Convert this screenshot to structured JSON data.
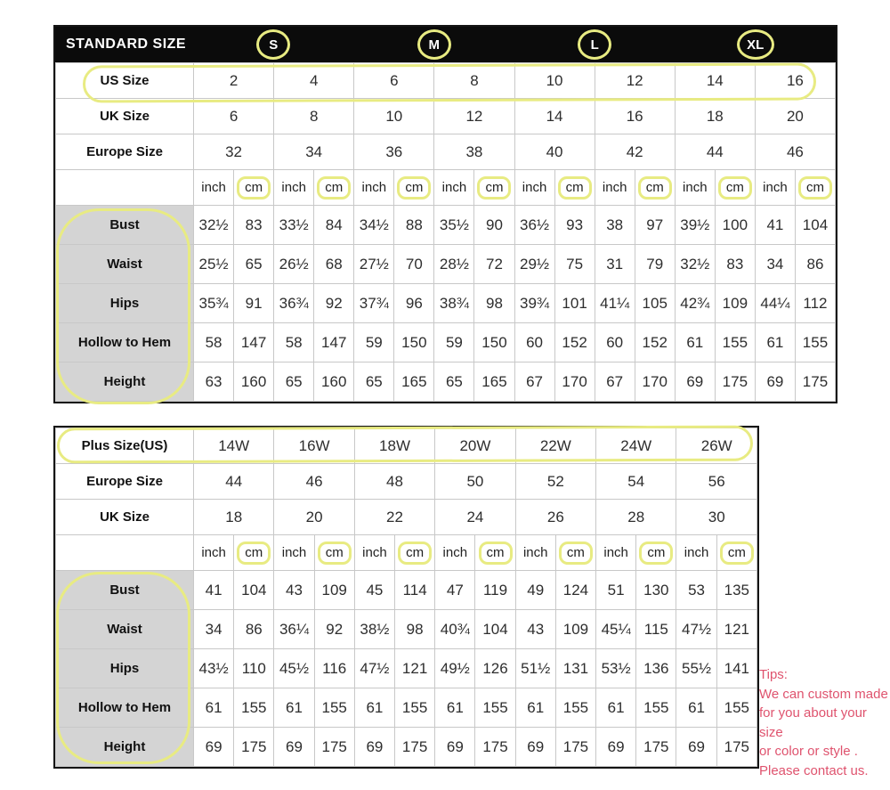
{
  "page": {
    "background": "#ffffff"
  },
  "colors": {
    "highlight_yellow": "#e8eb82",
    "header_bar_bg": "#0b0b0b",
    "label_gray_bg": "#d4d4d4",
    "grid_border_gray": "#c8c8c8",
    "outer_border_black": "#141414",
    "tips_pink": "#df536e"
  },
  "chart_data": [
    {
      "type": "table",
      "name": "standard",
      "title": "STANDARD SIZE",
      "size_letters": [
        "S",
        "M",
        "L",
        "XL"
      ],
      "groups": 8,
      "size_rows": [
        {
          "label": "US Size",
          "values": [
            "2",
            "4",
            "6",
            "8",
            "10",
            "12",
            "14",
            "16"
          ],
          "highlighted": true
        },
        {
          "label": "UK Size",
          "values": [
            "6",
            "8",
            "10",
            "12",
            "14",
            "16",
            "18",
            "20"
          ],
          "highlighted": false
        },
        {
          "label": "Europe Size",
          "values": [
            "32",
            "34",
            "36",
            "38",
            "40",
            "42",
            "44",
            "46"
          ],
          "highlighted": false
        }
      ],
      "unit_labels": {
        "inch": "inch",
        "cm": "cm",
        "cm_highlighted": true
      },
      "measure_rows": [
        {
          "label": "Bust",
          "values": [
            "32½",
            "83",
            "33½",
            "84",
            "34½",
            "88",
            "35½",
            "90",
            "36½",
            "93",
            "38",
            "97",
            "39½",
            "100",
            "41",
            "104"
          ]
        },
        {
          "label": "Waist",
          "values": [
            "25½",
            "65",
            "26½",
            "68",
            "27½",
            "70",
            "28½",
            "72",
            "29½",
            "75",
            "31",
            "79",
            "32½",
            "83",
            "34",
            "86"
          ]
        },
        {
          "label": "Hips",
          "values": [
            "35¾",
            "91",
            "36¾",
            "92",
            "37¾",
            "96",
            "38¾",
            "98",
            "39¾",
            "101",
            "41¼",
            "105",
            "42¾",
            "109",
            "44¼",
            "112"
          ]
        },
        {
          "label": "Hollow to Hem",
          "values": [
            "58",
            "147",
            "58",
            "147",
            "59",
            "150",
            "59",
            "150",
            "60",
            "152",
            "60",
            "152",
            "61",
            "155",
            "61",
            "155"
          ]
        },
        {
          "label": "Height",
          "values": [
            "63",
            "160",
            "65",
            "160",
            "65",
            "165",
            "65",
            "165",
            "67",
            "170",
            "67",
            "170",
            "69",
            "175",
            "69",
            "175"
          ]
        }
      ]
    },
    {
      "type": "table",
      "name": "plus",
      "title": "",
      "size_letters": [],
      "groups": 7,
      "size_rows": [
        {
          "label": "Plus Size(US)",
          "values": [
            "14W",
            "16W",
            "18W",
            "20W",
            "22W",
            "24W",
            "26W"
          ],
          "highlighted": true
        },
        {
          "label": "Europe Size",
          "values": [
            "44",
            "46",
            "48",
            "50",
            "52",
            "54",
            "56"
          ],
          "highlighted": false
        },
        {
          "label": "UK Size",
          "values": [
            "18",
            "20",
            "22",
            "24",
            "26",
            "28",
            "30"
          ],
          "highlighted": false
        }
      ],
      "unit_labels": {
        "inch": "inch",
        "cm": "cm",
        "cm_highlighted": true
      },
      "measure_rows": [
        {
          "label": "Bust",
          "values": [
            "41",
            "104",
            "43",
            "109",
            "45",
            "114",
            "47",
            "119",
            "49",
            "124",
            "51",
            "130",
            "53",
            "135"
          ]
        },
        {
          "label": "Waist",
          "values": [
            "34",
            "86",
            "36¼",
            "92",
            "38½",
            "98",
            "40¾",
            "104",
            "43",
            "109",
            "45¼",
            "115",
            "47½",
            "121"
          ]
        },
        {
          "label": "Hips",
          "values": [
            "43½",
            "110",
            "45½",
            "116",
            "47½",
            "121",
            "49½",
            "126",
            "51½",
            "131",
            "53½",
            "136",
            "55½",
            "141"
          ]
        },
        {
          "label": "Hollow to Hem",
          "values": [
            "61",
            "155",
            "61",
            "155",
            "61",
            "155",
            "61",
            "155",
            "61",
            "155",
            "61",
            "155",
            "61",
            "155"
          ]
        },
        {
          "label": "Height",
          "values": [
            "69",
            "175",
            "69",
            "175",
            "69",
            "175",
            "69",
            "175",
            "69",
            "175",
            "69",
            "175",
            "69",
            "175"
          ]
        }
      ]
    }
  ],
  "tips": {
    "title": "Tips:",
    "lines": [
      "We can custom made",
      "for you about your size",
      "or color or style .",
      "Please contact us."
    ]
  }
}
